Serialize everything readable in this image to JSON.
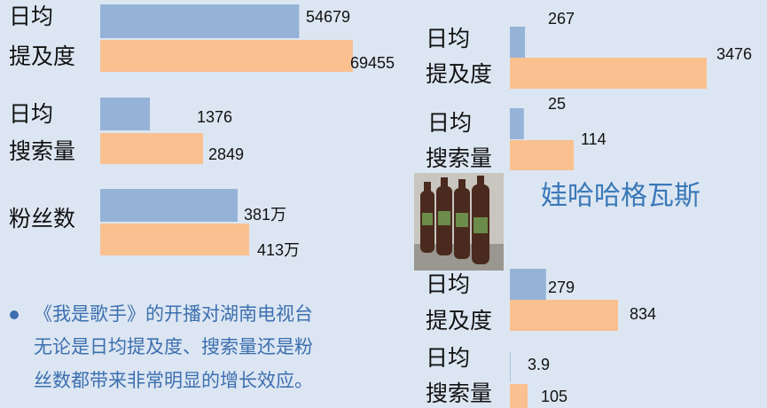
{
  "left": {
    "groups": [
      {
        "label_lines": [
          "日均",
          "提及度"
        ],
        "values": [
          54679,
          69455
        ]
      },
      {
        "label_lines": [
          "日均",
          "搜索量"
        ],
        "values": [
          1376,
          2849
        ]
      },
      {
        "label_lines": [
          "粉丝数"
        ],
        "values": [
          381,
          413
        ],
        "value_labels": [
          "381万",
          "413万"
        ]
      }
    ]
  },
  "right": {
    "brand": "娃哈哈格瓦斯",
    "groups": [
      {
        "label_lines": [
          "日均",
          "提及度"
        ],
        "values": [
          267,
          3476
        ]
      },
      {
        "label_lines": [
          "日均",
          "搜索量"
        ],
        "values": [
          25,
          114
        ]
      },
      {
        "label_lines": [
          "日均",
          "提及度"
        ],
        "values": [
          279,
          834
        ]
      },
      {
        "label_lines": [
          "日均",
          "搜索量"
        ],
        "values": [
          3.9,
          105
        ]
      }
    ]
  },
  "bullet": {
    "lines": [
      "《我是歌手》的开播对湖南电视台",
      "无论是日均提及度、搜索量还是粉",
      "丝数都带来非常明显的增长效应。"
    ]
  }
}
